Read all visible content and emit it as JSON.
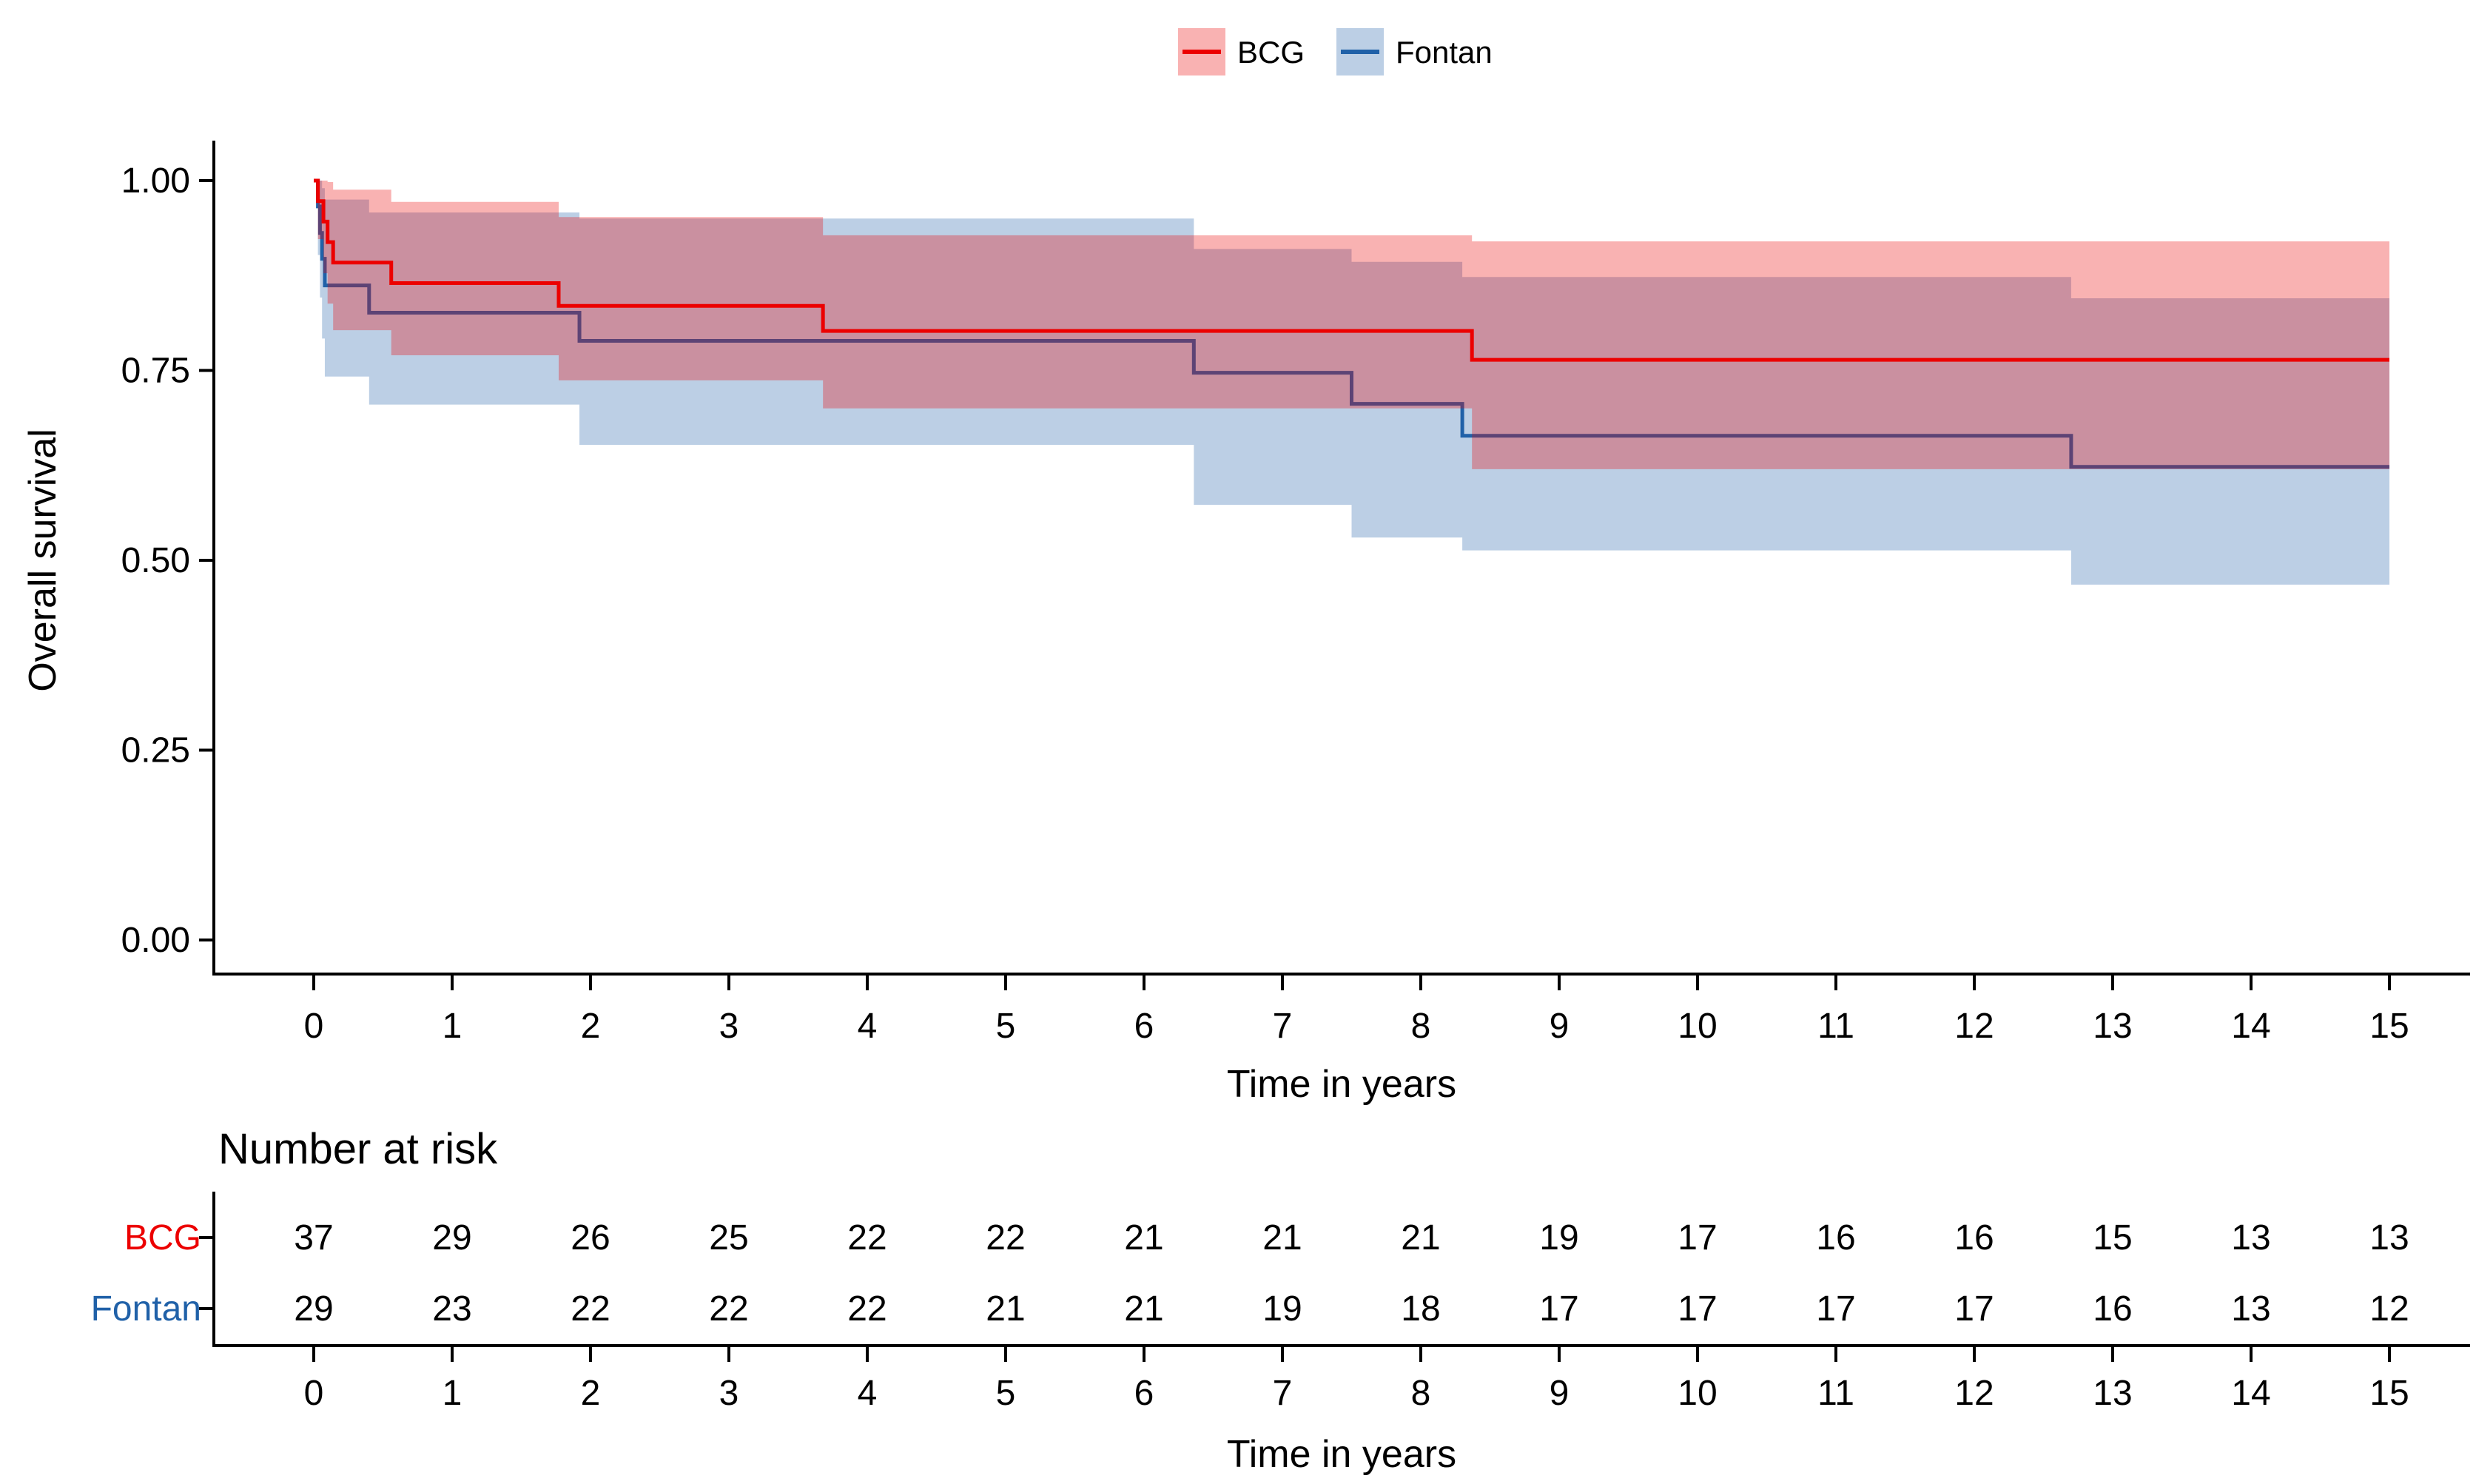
{
  "figure": {
    "kind": "Kaplan-Meier overall survival plot with number-at-risk table",
    "background": "#ffffff",
    "text_color": "#000000"
  },
  "legend": {
    "items": [
      {
        "label": "BCG",
        "line_color": "#EC0000",
        "fill_color": "#EC0000",
        "fill_opacity": 0.3
      },
      {
        "label": "Fontan",
        "line_color": "#2061A8",
        "fill_color": "#2061A8",
        "fill_opacity": 0.3
      }
    ]
  },
  "chart_data": {
    "type": "line",
    "subtype": "kaplan_meier_step",
    "title": "",
    "xlabel": "Time in years",
    "ylabel": "Overall survival",
    "xlim": [
      0,
      15
    ],
    "ylim": [
      0,
      1
    ],
    "grid": false,
    "legend_position": "top-center",
    "x_ticks": [
      0,
      1,
      2,
      3,
      4,
      5,
      6,
      7,
      8,
      9,
      10,
      11,
      12,
      13,
      14,
      15
    ],
    "y_ticks": [
      {
        "v": 1.0,
        "label": "1.00"
      },
      {
        "v": 0.75,
        "label": "0.75"
      },
      {
        "v": 0.5,
        "label": "0.50"
      },
      {
        "v": 0.25,
        "label": "0.25"
      },
      {
        "v": 0.0,
        "label": "0.00"
      }
    ],
    "series": [
      {
        "name": "Fontan",
        "color": "#2061A8",
        "fill_opacity": 0.3,
        "end_time": 15,
        "times": [
          0,
          0.03,
          0.045,
          0.06,
          0.08,
          0.4,
          1.92,
          6.36,
          7.5,
          8.3,
          12.7
        ],
        "surv": [
          1.0,
          0.966,
          0.931,
          0.897,
          0.862,
          0.826,
          0.789,
          0.747,
          0.706,
          0.664,
          0.623
        ],
        "upper": [
          1.0,
          1.0,
          1.0,
          0.99,
          0.975,
          0.958,
          0.95,
          0.91,
          0.893,
          0.873,
          0.845
        ],
        "lower": [
          1.0,
          0.902,
          0.846,
          0.792,
          0.742,
          0.705,
          0.652,
          0.573,
          0.53,
          0.513,
          0.468
        ]
      },
      {
        "name": "BCG",
        "color": "#EC0000",
        "fill_opacity": 0.3,
        "end_time": 15,
        "times": [
          0,
          0.03,
          0.07,
          0.1,
          0.14,
          0.56,
          1.77,
          3.68,
          8.37
        ],
        "surv": [
          1.0,
          0.973,
          0.946,
          0.919,
          0.892,
          0.865,
          0.835,
          0.802,
          0.764
        ],
        "upper": [
          1.0,
          1.0,
          1.0,
          0.998,
          0.988,
          0.972,
          0.952,
          0.928,
          0.92
        ],
        "lower": [
          1.0,
          0.923,
          0.878,
          0.838,
          0.803,
          0.77,
          0.737,
          0.7,
          0.62
        ]
      }
    ],
    "risk_table": {
      "title": "Number at risk",
      "xlabel": "Time in years",
      "times": [
        0,
        1,
        2,
        3,
        4,
        5,
        6,
        7,
        8,
        9,
        10,
        11,
        12,
        13,
        14,
        15
      ],
      "rows": [
        {
          "name": "BCG",
          "color": "#EC0000",
          "counts": [
            37,
            29,
            26,
            25,
            22,
            22,
            21,
            21,
            21,
            19,
            17,
            16,
            16,
            15,
            13,
            13
          ]
        },
        {
          "name": "Fontan",
          "color": "#2061A8",
          "counts": [
            29,
            23,
            22,
            22,
            22,
            21,
            21,
            19,
            18,
            17,
            17,
            17,
            17,
            16,
            13,
            12
          ]
        }
      ]
    }
  }
}
